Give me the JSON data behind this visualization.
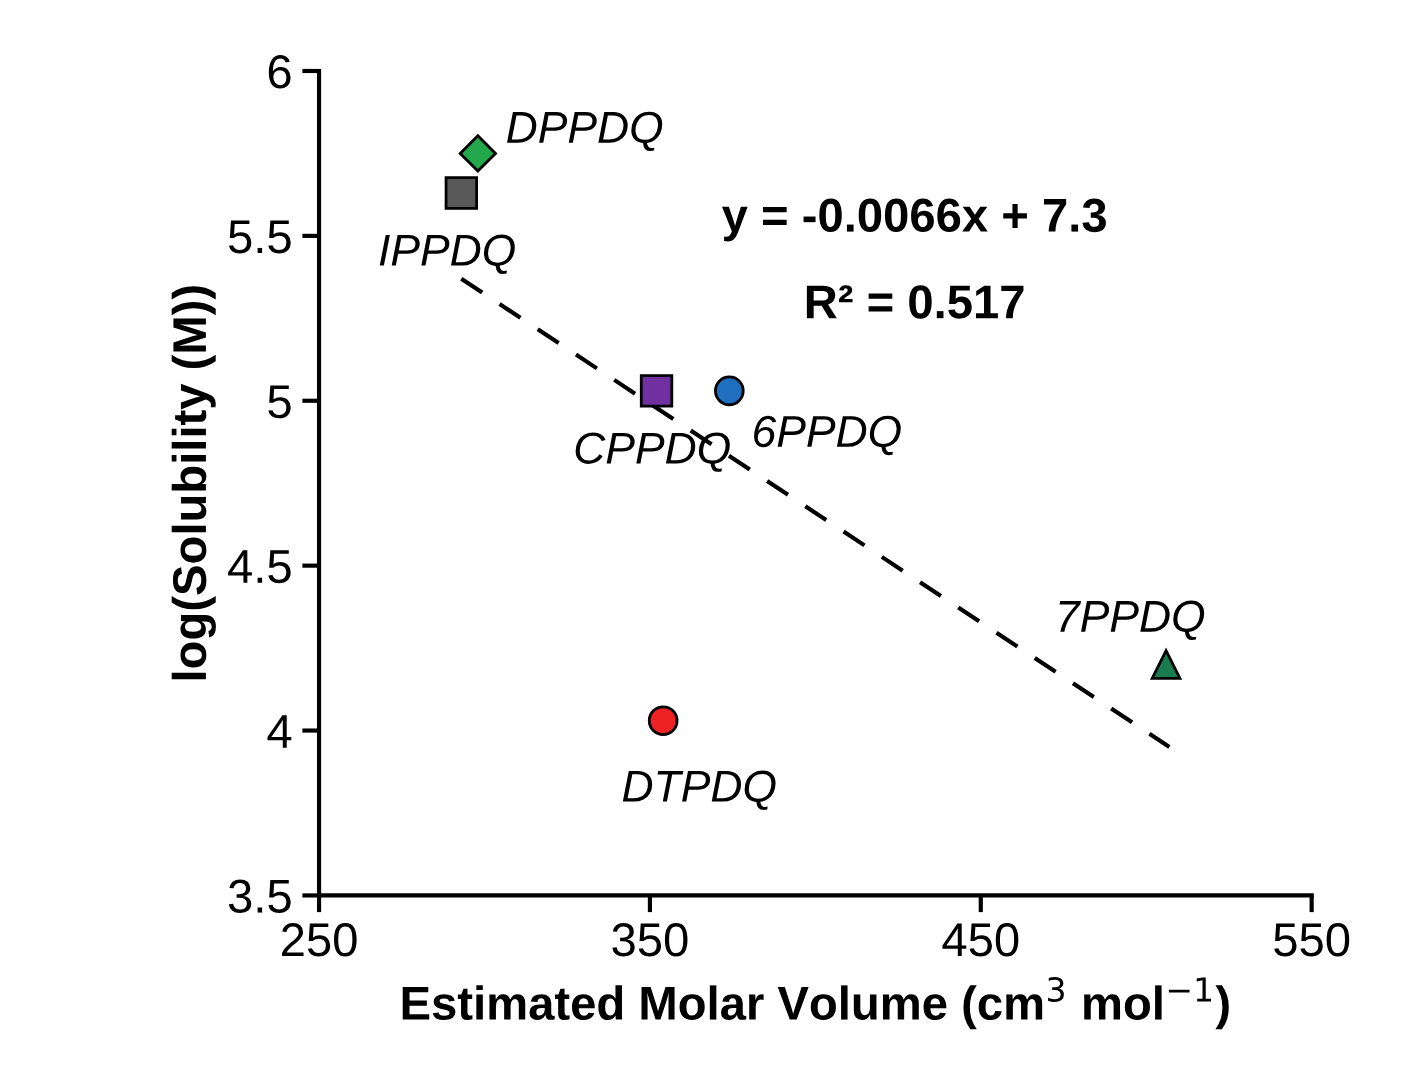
{
  "chart_data": {
    "type": "scatter",
    "xlabel": "Estimated Molar Volume (cm$^{3}$ mol$^{−1}$)",
    "ylabel": "log(Solubility (M))",
    "xlim": [
      250,
      550
    ],
    "xticks": [
      250,
      350,
      450,
      550
    ],
    "ylim": [
      3.5,
      6
    ],
    "yticks": [
      3.5,
      4,
      {
        "value": 4.5,
        "label": "4.5"
      },
      5,
      {
        "value": 5.5,
        "label": "5.5"
      },
      6
    ],
    "grid": false,
    "legend": false,
    "series": [
      {
        "name": "DPPDQ",
        "color": "#22a84a",
        "marker": "diamond",
        "x": [
          298
        ],
        "values": [
          5.75
        ]
      },
      {
        "name": "IPPDQ",
        "color": "#595959",
        "marker": "square",
        "x": [
          293
        ],
        "values": [
          5.63
        ]
      },
      {
        "name": "CPPDQ",
        "color": "#7030a0",
        "marker": "square",
        "x": [
          352
        ],
        "values": [
          5.03
        ]
      },
      {
        "name": "6PPDQ",
        "color": "#1f6fbf",
        "marker": "circle",
        "x": [
          374
        ],
        "values": [
          5.03
        ]
      },
      {
        "name": "DTPDQ",
        "color": "#ee2222",
        "marker": "circle",
        "x": [
          354
        ],
        "values": [
          4.03
        ]
      },
      {
        "name": "7PPDQ",
        "color": "#1a7a50",
        "marker": "triangle",
        "x": [
          506
        ],
        "values": [
          4.2
        ]
      },
      {
        "type": "line",
        "color": "#000000",
        "line_style": "dashed",
        "marker": "none",
        "x": [
          293,
          507
        ],
        "values": [
          5.37,
          3.95
        ]
      }
    ],
    "annotations": [
      "y = -0.0066x + 7.3",
      "R² = 0.517"
    ]
  }
}
